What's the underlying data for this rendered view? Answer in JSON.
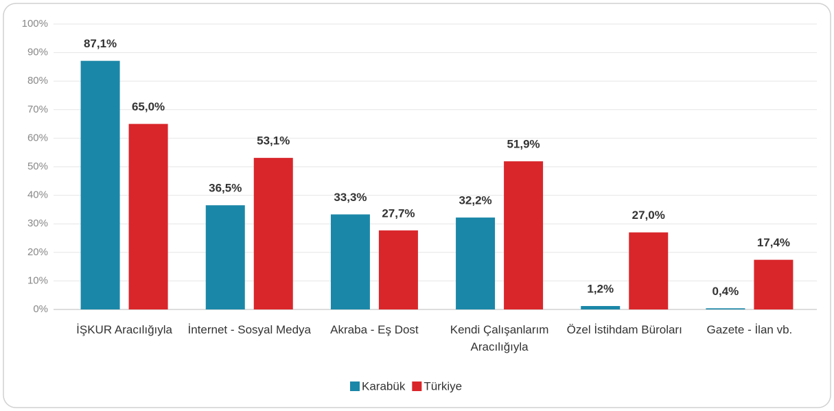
{
  "chart_data": {
    "type": "bar",
    "categories": [
      "İŞKUR Aracılığıyla",
      "İnternet - Sosyal Medya",
      "Akraba - Eş Dost",
      "Kendi Çalışanlarım Aracılığıyla",
      "Özel İstihdam Büroları",
      "Gazete - İlan vb."
    ],
    "series": [
      {
        "name": "Karabük",
        "color": "#1b87a8",
        "values": [
          87.1,
          36.5,
          33.3,
          32.2,
          1.2,
          0.4
        ],
        "value_labels": [
          "87,1%",
          "36,5%",
          "33,3%",
          "32,2%",
          "1,2%",
          "0,4%"
        ]
      },
      {
        "name": "Türkiye",
        "color": "#d9262a",
        "values": [
          65.0,
          53.1,
          27.7,
          51.9,
          27.0,
          17.4
        ],
        "value_labels": [
          "65,0%",
          "53,1%",
          "27,7%",
          "51,9%",
          "27,0%",
          "17,4%"
        ]
      }
    ],
    "ylim": [
      0,
      100
    ],
    "yticks": [
      {
        "value": 0,
        "label": "0%"
      },
      {
        "value": 10,
        "label": "10%"
      },
      {
        "value": 20,
        "label": "20%"
      },
      {
        "value": 30,
        "label": "30%"
      },
      {
        "value": 40,
        "label": "40%"
      },
      {
        "value": 50,
        "label": "50%"
      },
      {
        "value": 60,
        "label": "60%"
      },
      {
        "value": 70,
        "label": "70%"
      },
      {
        "value": 80,
        "label": "80%"
      },
      {
        "value": 90,
        "label": "90%"
      },
      {
        "value": 100,
        "label": "100%"
      }
    ],
    "grid": true,
    "legend": "bottom"
  }
}
